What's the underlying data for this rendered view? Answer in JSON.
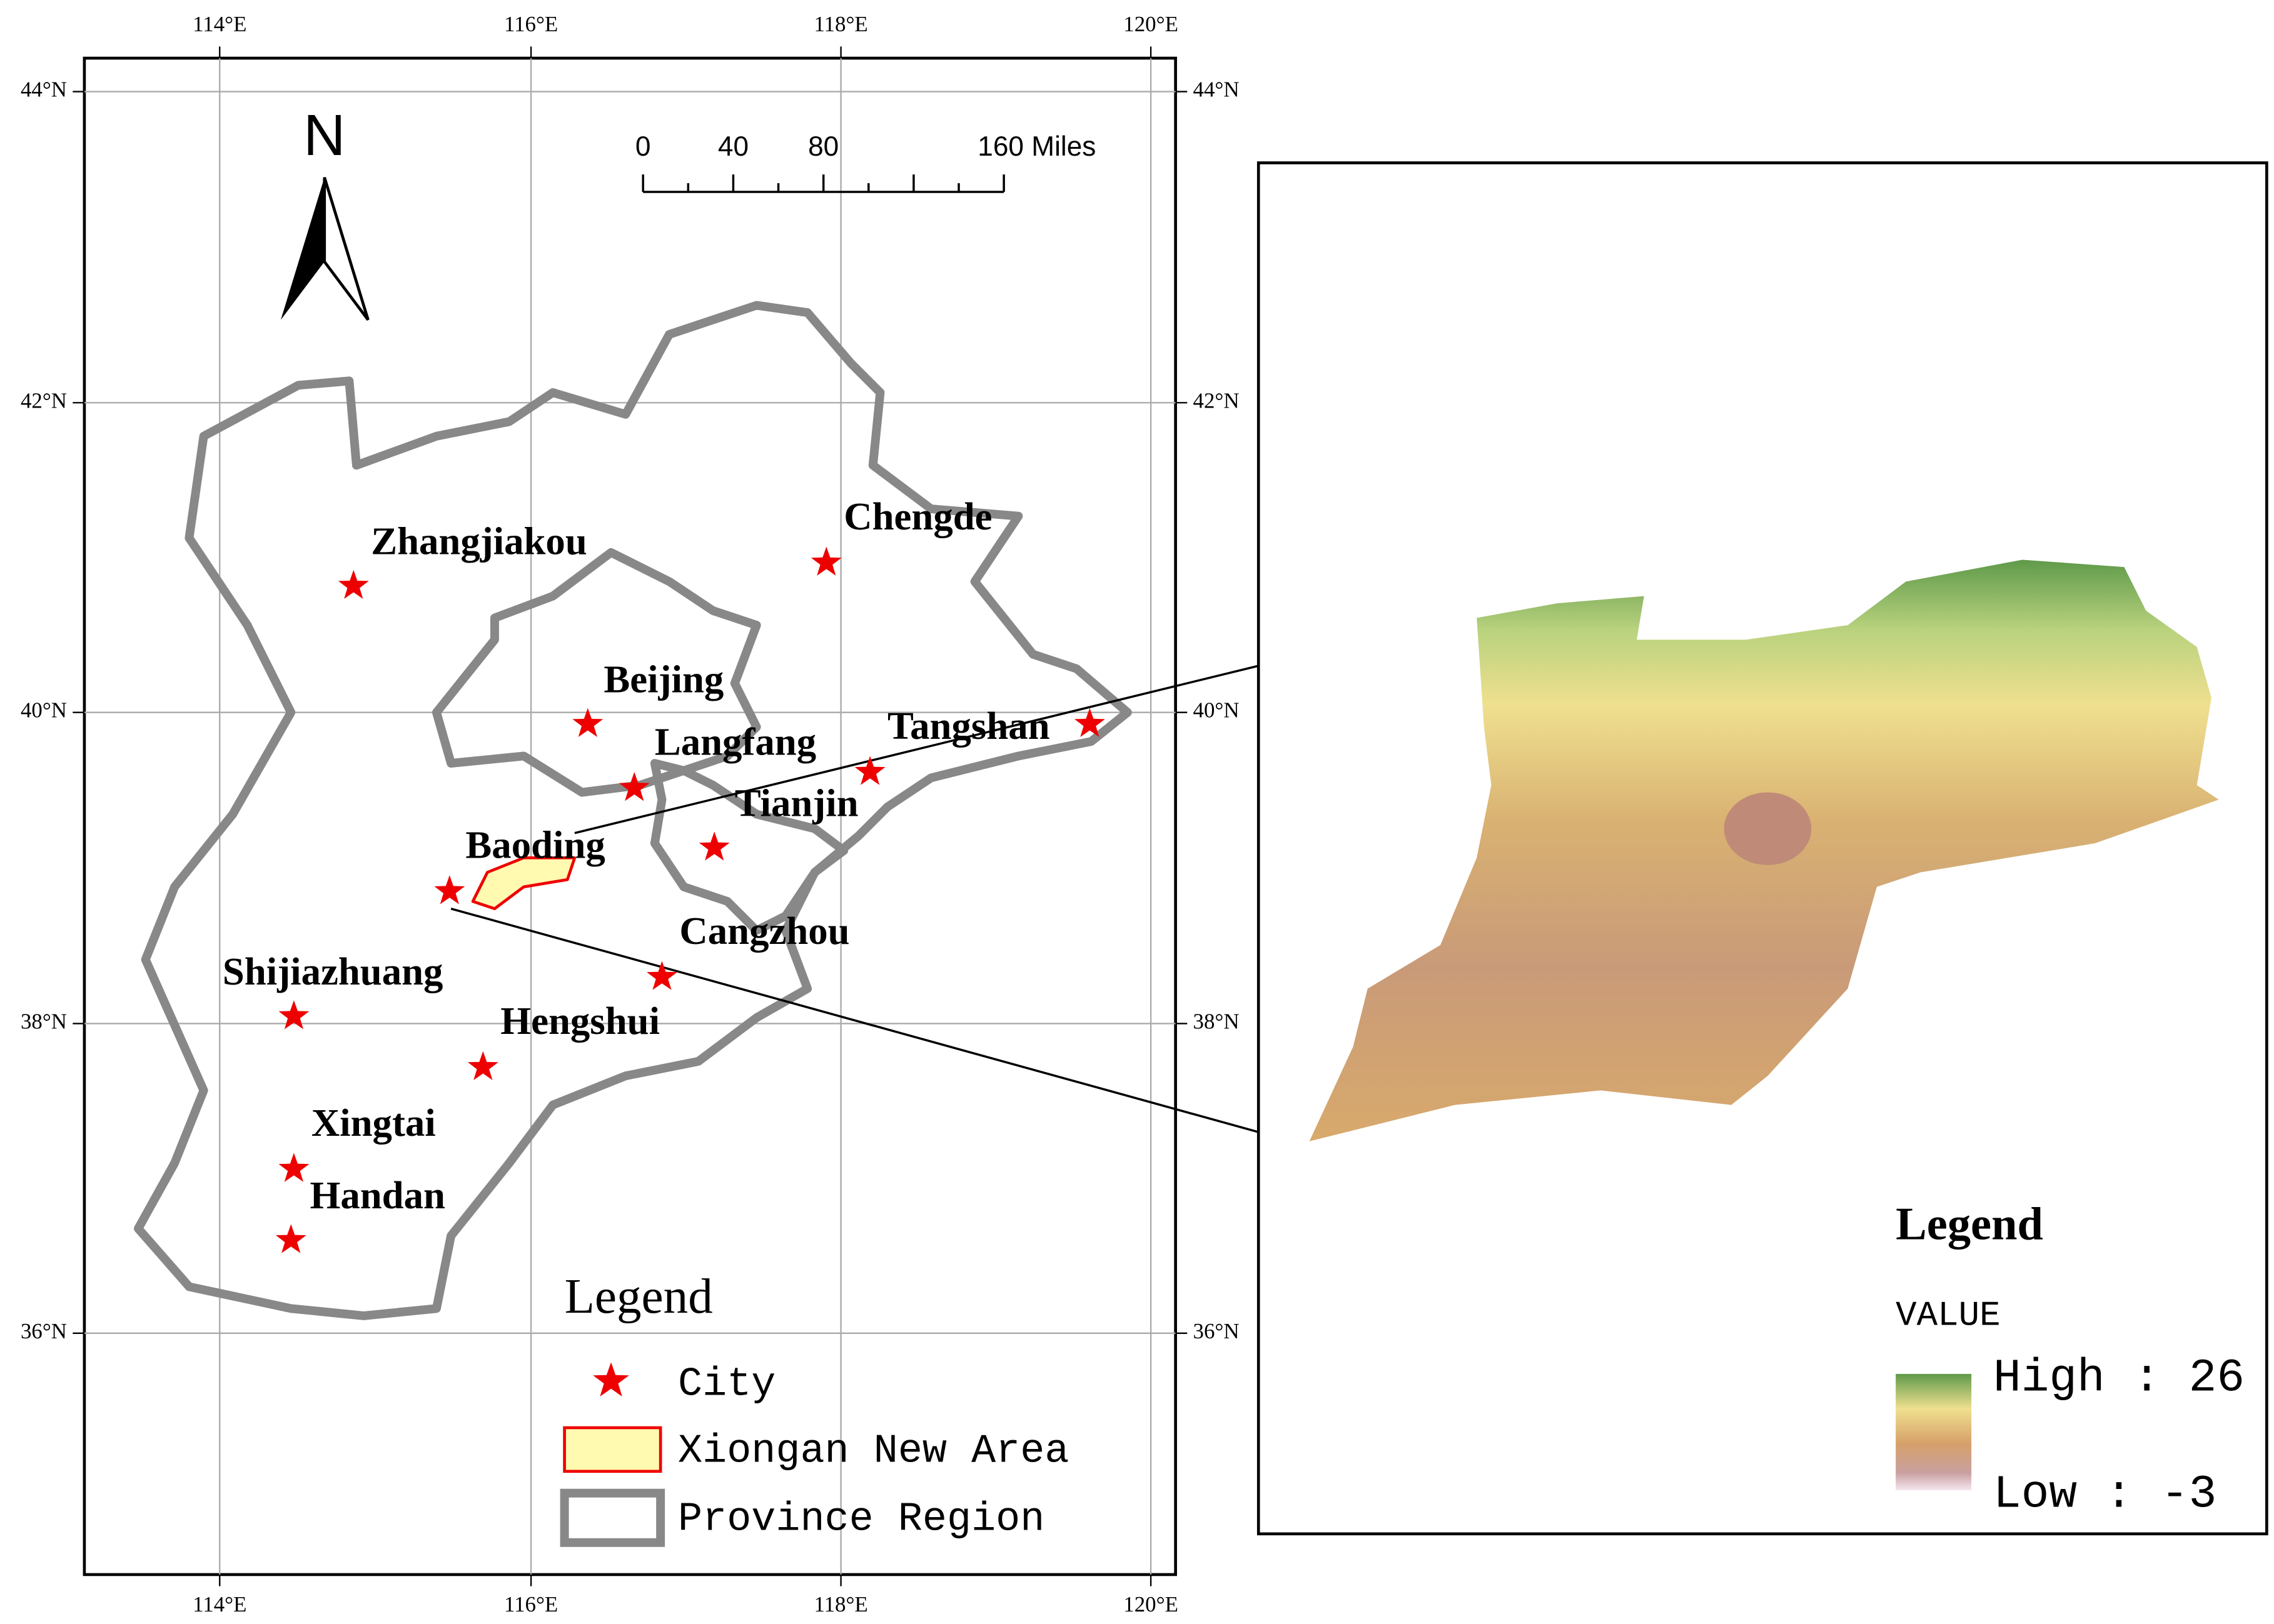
{
  "left_map": {
    "longitude_labels": [
      "114°E",
      "116°E",
      "118°E",
      "120°E"
    ],
    "latitude_labels": [
      "44°N",
      "42°N",
      "40°N",
      "38°N",
      "36°N"
    ],
    "north_arrow": "N",
    "scale_bar": [
      "0",
      "40",
      "80",
      "160 Miles"
    ],
    "cities": [
      "Zhangjiakou",
      "Chengde",
      "Beijing",
      "Langfang",
      "Tangshan",
      "Tianjin",
      "Baoding",
      "Cangzhou",
      "Shijiazhuang",
      "Hengshui",
      "Xingtai",
      "Handan"
    ],
    "legend": {
      "title": "Legend",
      "items": [
        "City",
        "Xiongan New Area",
        "Province Region"
      ]
    }
  },
  "inset_map": {
    "legend": {
      "title": "Legend",
      "field": "VALUE",
      "high": "High : 26",
      "low": "Low : -3"
    }
  }
}
